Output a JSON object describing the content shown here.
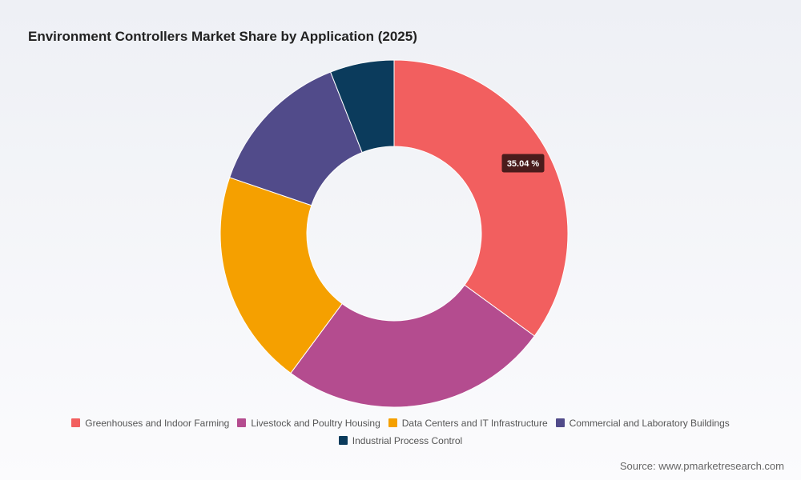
{
  "chart_data": {
    "type": "pie",
    "variant": "donut",
    "title": "Environment Controllers Market Share by Application (2025)",
    "categories": [
      "Greenhouses and Indoor Farming",
      "Livestock and Poultry Housing",
      "Data Centers and IT Infrastructure",
      "Commercial and Laboratory Buildings",
      "Industrial Process Control"
    ],
    "values": [
      35.04,
      25.1,
      20.1,
      13.8,
      5.96
    ],
    "colors": [
      "#f25f5f",
      "#b44c8f",
      "#f5a000",
      "#514b8a",
      "#0b3b5c"
    ],
    "value_suffix": " %",
    "highlighted_label": "35.04 %",
    "legend_position": "bottom"
  },
  "source": "Source: www.pmarketresearch.com"
}
